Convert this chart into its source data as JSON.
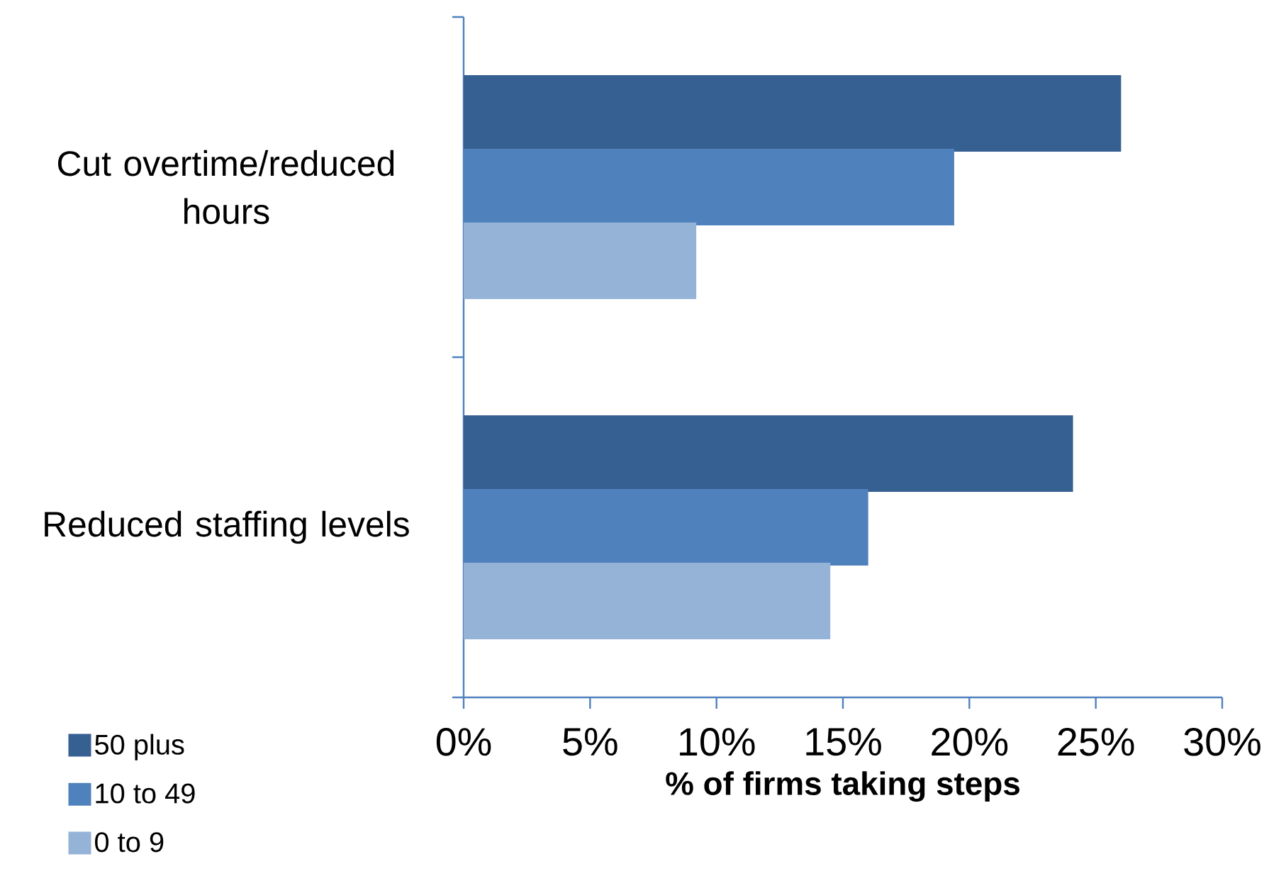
{
  "chart_data": {
    "type": "bar",
    "orientation": "horizontal",
    "xlabel": "% of firms taking steps",
    "categories": [
      "Cut overtime/reduced hours",
      "Reduced staffing levels"
    ],
    "series": [
      {
        "name": "50 plus",
        "color": "#376092",
        "values": [
          26.0,
          24.1
        ]
      },
      {
        "name": "10 to 49",
        "color": "#4f81bd",
        "values": [
          19.4,
          16.0
        ]
      },
      {
        "name": "0 to 9",
        "color": "#95b3d7",
        "values": [
          9.2,
          14.5
        ]
      }
    ],
    "xlim": [
      0,
      30
    ],
    "xticks": [
      {
        "value": 0,
        "label": "0%"
      },
      {
        "value": 5,
        "label": "5%"
      },
      {
        "value": 10,
        "label": "10%"
      },
      {
        "value": 15,
        "label": "15%"
      },
      {
        "value": 20,
        "label": "20%"
      },
      {
        "value": 25,
        "label": "25%"
      },
      {
        "value": 30,
        "label": "30%"
      }
    ],
    "legend": "bottom left"
  }
}
